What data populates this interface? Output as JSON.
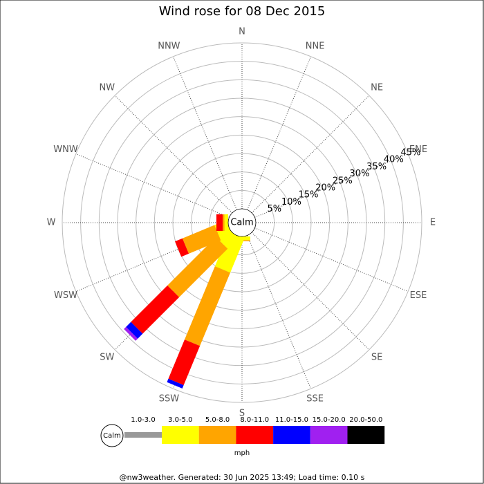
{
  "chart_data": {
    "type": "windrose",
    "title": "Wind rose for 08 Dec 2015",
    "directions": [
      "N",
      "NNE",
      "NE",
      "ENE",
      "E",
      "ESE",
      "SE",
      "SSE",
      "S",
      "SSW",
      "SW",
      "WSW",
      "W",
      "WNW",
      "NW",
      "NNW"
    ],
    "calm_label": "Calm",
    "rlim": [
      0,
      45
    ],
    "rticks": [
      {
        "value": 5,
        "label": "5%"
      },
      {
        "value": 10,
        "label": "10%"
      },
      {
        "value": 15,
        "label": "15%"
      },
      {
        "value": 20,
        "label": "20%"
      },
      {
        "value": 25,
        "label": "25%"
      },
      {
        "value": 30,
        "label": "30%"
      },
      {
        "value": 35,
        "label": "35%"
      },
      {
        "value": 40,
        "label": "40%"
      },
      {
        "value": 45,
        "label": "45%"
      }
    ],
    "series": [
      {
        "name": "1.0-3.0",
        "color": "#999999",
        "values": [
          0,
          0,
          0,
          0,
          0,
          0,
          0,
          0,
          0,
          0,
          0,
          0,
          0,
          0,
          0,
          0
        ]
      },
      {
        "name": "3.0-5.0",
        "color": "#ffff00",
        "values": [
          0,
          0,
          0,
          0,
          0,
          0,
          0,
          0,
          1.0,
          10,
          4,
          3.4,
          1,
          0,
          0,
          0
        ]
      },
      {
        "name": "5.0-8.0",
        "color": "#ffa500",
        "values": [
          0,
          0,
          0,
          0,
          0,
          0,
          0,
          0,
          0.3,
          21.5,
          18.6,
          9.4,
          0.5,
          0,
          0,
          0
        ]
      },
      {
        "name": "8.0-11.0",
        "color": "#ff0000",
        "values": [
          0,
          0,
          0,
          0,
          0,
          0,
          0,
          0,
          0,
          11.5,
          14,
          2.2,
          1.7,
          0,
          0,
          0
        ]
      },
      {
        "name": "11.0-15.0",
        "color": "#0000ff",
        "values": [
          0,
          0,
          0,
          0,
          0,
          0,
          0,
          0,
          0,
          1,
          1.9,
          0,
          0,
          0,
          0,
          0
        ]
      },
      {
        "name": "15.0-20.0",
        "color": "#a020f0",
        "values": [
          0,
          0,
          0,
          0,
          0,
          0,
          0,
          0,
          0,
          0,
          0.8,
          0,
          0,
          0,
          0,
          0
        ]
      },
      {
        "name": "20.0-50.0",
        "color": "#000000",
        "values": [
          0,
          0,
          0,
          0,
          0,
          0,
          0,
          0,
          0,
          0,
          0,
          0,
          0,
          0,
          0,
          0
        ]
      }
    ],
    "units": "mph",
    "footer": "@nw3weather. Generated: 30 Jun 2025 13:49; Load time: 0.10 s"
  }
}
